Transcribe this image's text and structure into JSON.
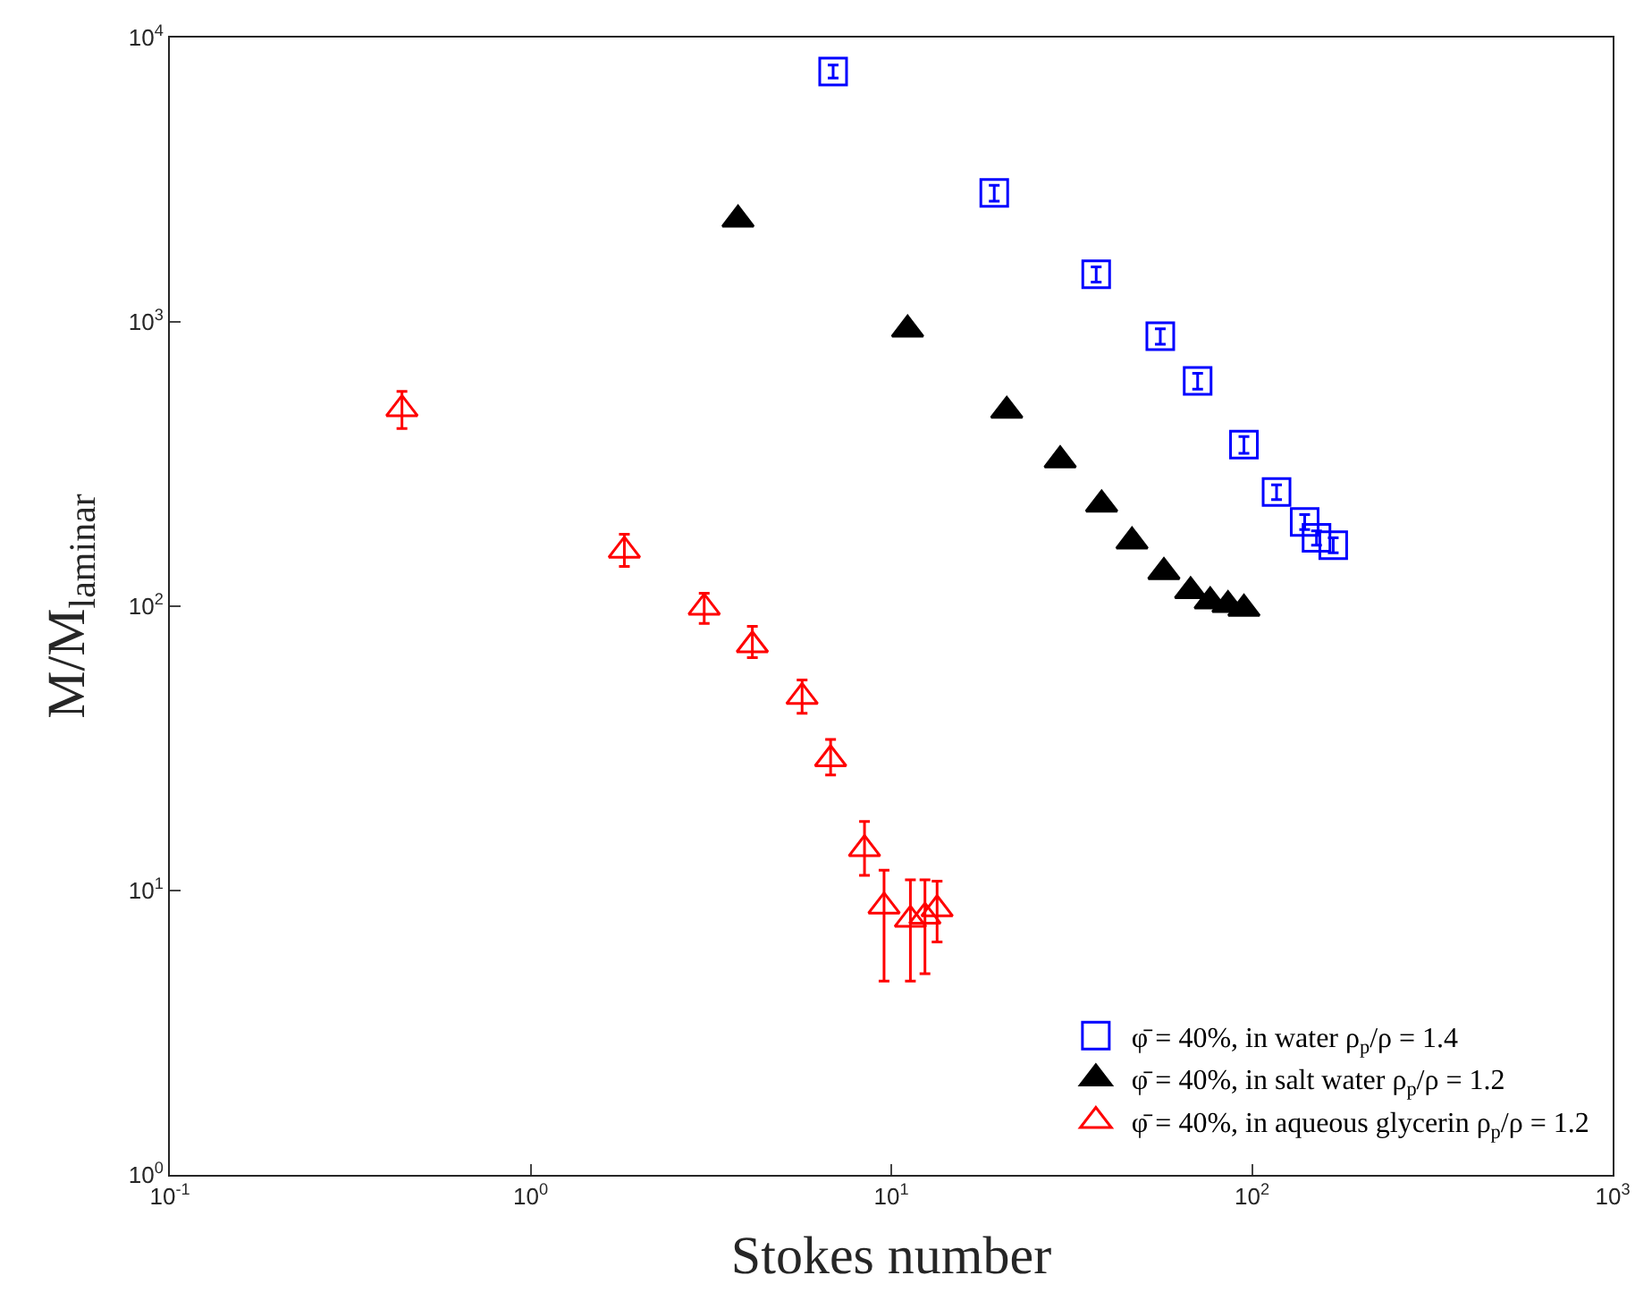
{
  "chart_data": {
    "type": "scatter",
    "xlabel": "Stokes number",
    "ylabel": "M/M$_{laminar}$",
    "log": "xy",
    "legend": "bottom right",
    "xlim": [
      0.1,
      1000
    ],
    "ylim": [
      1,
      10000
    ],
    "xticks": [
      {
        "value": 0.1,
        "label": "10$^{-1}$"
      },
      {
        "value": 1,
        "label": "10$^{0}$"
      },
      {
        "value": 10,
        "label": "10$^{1}$"
      },
      {
        "value": 100,
        "label": "10$^{2}$"
      },
      {
        "value": 1000,
        "label": "10$^{3}$"
      }
    ],
    "yticks": [
      {
        "value": 1,
        "label": "10$^{0}$"
      },
      {
        "value": 10,
        "label": "10$^{1}$"
      },
      {
        "value": 100,
        "label": "10$^{2}$"
      },
      {
        "value": 1000,
        "label": "10$^{3}$"
      },
      {
        "value": 10000,
        "label": "10$^{4}$"
      }
    ],
    "series": [
      {
        "name": "φ̄ = 40%, in water ρ$_{p}$/ρ = 1.4",
        "color": "#0000ff",
        "marker": "square",
        "x": [
          6.9,
          19.3,
          37,
          55.7,
          70.7,
          95,
          117,
          140,
          151,
          168
        ],
        "values": [
          7600,
          2840,
          1470,
          890,
          620,
          370,
          252,
          198,
          174,
          164
        ],
        "errors": [
          400,
          180,
          90,
          55,
          40,
          25,
          15,
          12,
          10,
          10
        ]
      },
      {
        "name": "φ̄ = 40%, in salt water ρ$_{p}$/ρ = 1.2",
        "color": "#000000",
        "marker": "triangle",
        "x": [
          3.76,
          11.1,
          20.9,
          29.4,
          38.3,
          46.5,
          57,
          67.6,
          76.6,
          85.8,
          95
        ],
        "values": [
          2290,
          940,
          487,
          326,
          228,
          169,
          132,
          113,
          104,
          101,
          98
        ]
      },
      {
        "name": "φ̄ = 40%, in aqueous glycerin ρ$_{p}$/ρ = 1.2",
        "color": "#ff0000",
        "marker": "triangle",
        "x": [
          0.44,
          1.82,
          3.03,
          4.12,
          5.66,
          6.79,
          8.43,
          9.55,
          11.3,
          12.4,
          13.4
        ],
        "values": [
          494,
          157,
          99,
          73,
          48,
          29,
          14,
          8.8,
          7.9,
          8.1,
          8.6
        ],
        "errors": [
          [
            422,
            570
          ],
          [
            138,
            179
          ],
          [
            87,
            111
          ],
          [
            66,
            85
          ],
          [
            42,
            55
          ],
          [
            25.5,
            34
          ],
          [
            11.3,
            17.5
          ],
          [
            4.8,
            11.8
          ],
          [
            4.8,
            10.9
          ],
          [
            5.1,
            10.9
          ],
          [
            6.6,
            10.8
          ]
        ]
      }
    ]
  }
}
